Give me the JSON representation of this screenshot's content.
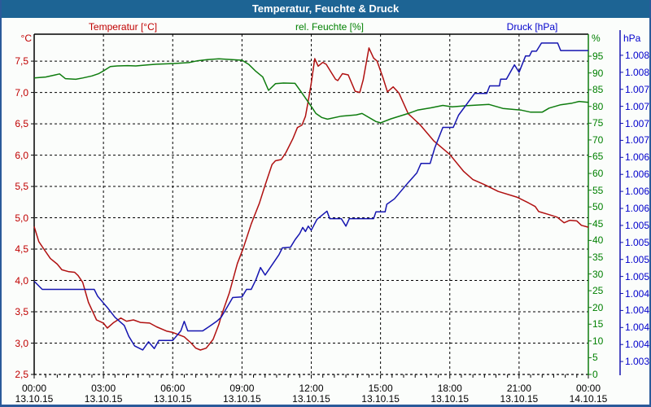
{
  "window": {
    "title": "Temperatur, Feuchte & Druck"
  },
  "legend": {
    "temperature": "Temperatur [°C]",
    "humidity": "rel. Feuchte [%]",
    "pressure": "Druck [hPa]"
  },
  "units": {
    "temperature": "°C",
    "humidity": "%",
    "pressure": "hPa"
  },
  "colors": {
    "titlebar": "#1d6494",
    "frame": "#2a5a9a",
    "temperature_line": "#b01010",
    "humidity_line": "#0e7c0e",
    "pressure_line": "#1515b0",
    "temperature_text": "#c00000",
    "humidity_text": "#008000",
    "pressure_text": "#0000cc",
    "grid": "#000000"
  },
  "chart_data": {
    "type": "line",
    "title": "Temperatur, Feuchte & Druck",
    "x_axis": {
      "unit": "hours",
      "range": [
        0,
        24
      ],
      "major_step_hours": 3,
      "minor_step_hours": 0.5,
      "tick_times": [
        "00:00",
        "03:00",
        "06:00",
        "09:00",
        "12:00",
        "15:00",
        "18:00",
        "21:00",
        "00:00"
      ],
      "tick_dates": [
        "13.10.15",
        "13.10.15",
        "13.10.15",
        "13.10.15",
        "13.10.15",
        "13.10.15",
        "13.10.15",
        "13.10.15",
        "14.10.15"
      ]
    },
    "axes": {
      "temp": {
        "ylim": [
          2.5,
          7.93
        ],
        "ticks": [
          7.5,
          7.0,
          6.5,
          6.0,
          5.5,
          5.0,
          4.5,
          4.0,
          3.5,
          3.0,
          2.5
        ],
        "tick_labels": [
          "7,5",
          "7,0",
          "6,5",
          "6,0",
          "5,5",
          "5,0",
          "4,5",
          "4,0",
          "3,5",
          "3,0",
          "2,5"
        ]
      },
      "humidity": {
        "ylim": [
          0,
          101.57
        ],
        "ticks": [
          95,
          90,
          85,
          80,
          75,
          70,
          65,
          60,
          55,
          50,
          45,
          40,
          35,
          30,
          25,
          20,
          15,
          10,
          5,
          0
        ],
        "tick_labels": [
          "95",
          "90",
          "85",
          "80",
          "75",
          "70",
          "65",
          "60",
          "55",
          "50",
          "45",
          "40",
          "35",
          "30",
          "25",
          "20",
          "15",
          "10",
          "5",
          "0"
        ]
      },
      "pressure": {
        "ylim": [
          1003.06,
          1008.06
        ],
        "ticks": [
          1007.75,
          1007.5,
          1007.25,
          1007.0,
          1006.75,
          1006.5,
          1006.25,
          1006.0,
          1005.75,
          1005.5,
          1005.25,
          1005.0,
          1004.75,
          1004.5,
          1004.25,
          1004.0,
          1003.75,
          1003.5,
          1003.25
        ],
        "tick_labels": [
          "1.008",
          "1.008",
          "1.007",
          "1.007",
          "1.007",
          "1.007",
          "1.006",
          "1.006",
          "1.006",
          "1.006",
          "1.005",
          "1.005",
          "1.005",
          "1.005",
          "1.004",
          "1.004",
          "1.004",
          "1.004",
          "1.003"
        ]
      }
    },
    "grid": true,
    "series": [
      {
        "name": "Temperatur [°C]",
        "axis": "temp",
        "color": "#b01010",
        "points": [
          [
            0,
            4.86
          ],
          [
            0.2,
            4.62
          ],
          [
            0.42,
            4.5
          ],
          [
            0.7,
            4.35
          ],
          [
            1.0,
            4.26
          ],
          [
            1.2,
            4.17
          ],
          [
            1.5,
            4.14
          ],
          [
            1.75,
            4.13
          ],
          [
            1.9,
            4.08
          ],
          [
            2.1,
            3.97
          ],
          [
            2.35,
            3.65
          ],
          [
            2.7,
            3.37
          ],
          [
            3.0,
            3.32
          ],
          [
            3.17,
            3.24
          ],
          [
            3.45,
            3.33
          ],
          [
            3.75,
            3.4
          ],
          [
            4.0,
            3.35
          ],
          [
            4.3,
            3.37
          ],
          [
            4.6,
            3.33
          ],
          [
            5.0,
            3.32
          ],
          [
            5.3,
            3.26
          ],
          [
            5.75,
            3.19
          ],
          [
            6.0,
            3.17
          ],
          [
            6.5,
            3.1
          ],
          [
            6.8,
            3.0
          ],
          [
            7.0,
            2.92
          ],
          [
            7.2,
            2.89
          ],
          [
            7.45,
            2.92
          ],
          [
            7.75,
            3.06
          ],
          [
            8.0,
            3.3
          ],
          [
            8.1,
            3.43
          ],
          [
            8.45,
            3.8
          ],
          [
            8.8,
            4.27
          ],
          [
            9.05,
            4.51
          ],
          [
            9.4,
            4.9
          ],
          [
            9.75,
            5.23
          ],
          [
            10.0,
            5.52
          ],
          [
            10.3,
            5.85
          ],
          [
            10.45,
            5.91
          ],
          [
            10.7,
            5.93
          ],
          [
            10.9,
            6.04
          ],
          [
            11.2,
            6.26
          ],
          [
            11.4,
            6.44
          ],
          [
            11.6,
            6.48
          ],
          [
            11.75,
            6.62
          ],
          [
            11.9,
            6.93
          ],
          [
            12.0,
            7.15
          ],
          [
            12.15,
            7.54
          ],
          [
            12.3,
            7.42
          ],
          [
            12.5,
            7.48
          ],
          [
            12.65,
            7.45
          ],
          [
            12.9,
            7.3
          ],
          [
            13.05,
            7.21
          ],
          [
            13.15,
            7.19
          ],
          [
            13.35,
            7.3
          ],
          [
            13.6,
            7.28
          ],
          [
            13.9,
            7.02
          ],
          [
            14.1,
            7.0
          ],
          [
            14.25,
            7.2
          ],
          [
            14.5,
            7.71
          ],
          [
            14.7,
            7.55
          ],
          [
            14.85,
            7.5
          ],
          [
            15.1,
            7.24
          ],
          [
            15.3,
            7.01
          ],
          [
            15.55,
            7.09
          ],
          [
            15.8,
            6.99
          ],
          [
            16.2,
            6.66
          ],
          [
            16.7,
            6.49
          ],
          [
            17.3,
            6.23
          ],
          [
            18.0,
            6.01
          ],
          [
            18.6,
            5.74
          ],
          [
            19.0,
            5.61
          ],
          [
            19.5,
            5.53
          ],
          [
            20.1,
            5.42
          ],
          [
            20.9,
            5.33
          ],
          [
            21.4,
            5.24
          ],
          [
            21.7,
            5.18
          ],
          [
            21.85,
            5.1
          ],
          [
            22.3,
            5.05
          ],
          [
            22.65,
            5.01
          ],
          [
            22.95,
            4.92
          ],
          [
            23.2,
            4.96
          ],
          [
            23.5,
            4.95
          ],
          [
            23.7,
            4.88
          ],
          [
            24,
            4.85
          ]
        ]
      },
      {
        "name": "rel. Feuchte [%]",
        "axis": "humidity",
        "color": "#0e7c0e",
        "points": [
          [
            0,
            88.5
          ],
          [
            0.5,
            88.8
          ],
          [
            0.9,
            89.4
          ],
          [
            1.1,
            89.7
          ],
          [
            1.35,
            88.3
          ],
          [
            1.8,
            88.1
          ],
          [
            2.1,
            88.5
          ],
          [
            2.5,
            89.1
          ],
          [
            2.8,
            89.8
          ],
          [
            3.05,
            90.8
          ],
          [
            3.3,
            91.9
          ],
          [
            3.6,
            92.1
          ],
          [
            4.05,
            92.2
          ],
          [
            4.4,
            92.1
          ],
          [
            4.9,
            92.4
          ],
          [
            5.3,
            92.6
          ],
          [
            6.0,
            92.8
          ],
          [
            6.7,
            93.1
          ],
          [
            7.05,
            93.6
          ],
          [
            7.5,
            94.0
          ],
          [
            8.0,
            94.2
          ],
          [
            9.0,
            93.8
          ],
          [
            9.3,
            92.5
          ],
          [
            9.6,
            90.5
          ],
          [
            9.9,
            88.8
          ],
          [
            10.15,
            84.8
          ],
          [
            10.45,
            86.8
          ],
          [
            10.8,
            87.0
          ],
          [
            11.3,
            86.9
          ],
          [
            11.6,
            84.0
          ],
          [
            11.85,
            81.5
          ],
          [
            12.05,
            79.5
          ],
          [
            12.2,
            77.9
          ],
          [
            12.45,
            76.7
          ],
          [
            12.7,
            76.2
          ],
          [
            13.3,
            77.1
          ],
          [
            13.95,
            77.5
          ],
          [
            14.2,
            77.9
          ],
          [
            14.8,
            75.5
          ],
          [
            15.0,
            75.1
          ],
          [
            15.45,
            76.3
          ],
          [
            16.2,
            77.9
          ],
          [
            16.6,
            78.9
          ],
          [
            17.2,
            79.6
          ],
          [
            17.7,
            80.3
          ],
          [
            18.1,
            79.9
          ],
          [
            18.7,
            80.2
          ],
          [
            19.7,
            80.6
          ],
          [
            20.3,
            79.4
          ],
          [
            21.1,
            78.9
          ],
          [
            21.5,
            78.3
          ],
          [
            22.0,
            78.3
          ],
          [
            22.3,
            79.5
          ],
          [
            22.8,
            80.5
          ],
          [
            23.3,
            81.0
          ],
          [
            23.6,
            81.5
          ],
          [
            24,
            81.2
          ]
        ]
      },
      {
        "name": "Druck [hPa]",
        "axis": "pressure",
        "color": "#1515b0",
        "points": [
          [
            0,
            1004.43
          ],
          [
            0.35,
            1004.31
          ],
          [
            2.6,
            1004.31
          ],
          [
            2.75,
            1004.21
          ],
          [
            3.2,
            1004.03
          ],
          [
            3.5,
            1003.9
          ],
          [
            3.9,
            1003.78
          ],
          [
            4.1,
            1003.62
          ],
          [
            4.35,
            1003.48
          ],
          [
            4.7,
            1003.42
          ],
          [
            4.95,
            1003.54
          ],
          [
            5.2,
            1003.44
          ],
          [
            5.4,
            1003.56
          ],
          [
            6.0,
            1003.56
          ],
          [
            6.35,
            1003.7
          ],
          [
            6.5,
            1003.84
          ],
          [
            6.65,
            1003.7
          ],
          [
            7.3,
            1003.7
          ],
          [
            7.65,
            1003.78
          ],
          [
            7.9,
            1003.84
          ],
          [
            8.1,
            1003.9
          ],
          [
            8.6,
            1004.19
          ],
          [
            9.0,
            1004.2
          ],
          [
            9.2,
            1004.31
          ],
          [
            9.4,
            1004.31
          ],
          [
            9.6,
            1004.45
          ],
          [
            9.8,
            1004.63
          ],
          [
            10.0,
            1004.52
          ],
          [
            10.3,
            1004.67
          ],
          [
            10.6,
            1004.82
          ],
          [
            10.75,
            1004.92
          ],
          [
            11.1,
            1004.93
          ],
          [
            11.3,
            1005.04
          ],
          [
            11.5,
            1005.13
          ],
          [
            11.63,
            1005.22
          ],
          [
            11.75,
            1005.16
          ],
          [
            11.87,
            1005.24
          ],
          [
            12.0,
            1005.18
          ],
          [
            12.25,
            1005.34
          ],
          [
            12.57,
            1005.43
          ],
          [
            12.68,
            1005.46
          ],
          [
            12.8,
            1005.35
          ],
          [
            13.3,
            1005.35
          ],
          [
            13.5,
            1005.24
          ],
          [
            13.65,
            1005.35
          ],
          [
            14.7,
            1005.35
          ],
          [
            14.8,
            1005.45
          ],
          [
            15.2,
            1005.45
          ],
          [
            15.27,
            1005.56
          ],
          [
            15.6,
            1005.64
          ],
          [
            16.2,
            1005.88
          ],
          [
            16.57,
            1006.02
          ],
          [
            16.75,
            1006.16
          ],
          [
            17.15,
            1006.16
          ],
          [
            17.35,
            1006.39
          ],
          [
            17.7,
            1006.69
          ],
          [
            18.15,
            1006.69
          ],
          [
            18.38,
            1006.87
          ],
          [
            19.08,
            1007.19
          ],
          [
            19.6,
            1007.19
          ],
          [
            19.73,
            1007.3
          ],
          [
            20.15,
            1007.3
          ],
          [
            20.2,
            1007.4
          ],
          [
            20.45,
            1007.4
          ],
          [
            20.8,
            1007.61
          ],
          [
            21.0,
            1007.5
          ],
          [
            21.28,
            1007.74
          ],
          [
            21.45,
            1007.74
          ],
          [
            21.55,
            1007.81
          ],
          [
            21.75,
            1007.81
          ],
          [
            21.97,
            1007.93
          ],
          [
            22.67,
            1007.93
          ],
          [
            22.8,
            1007.82
          ],
          [
            24,
            1007.82
          ]
        ]
      }
    ]
  }
}
